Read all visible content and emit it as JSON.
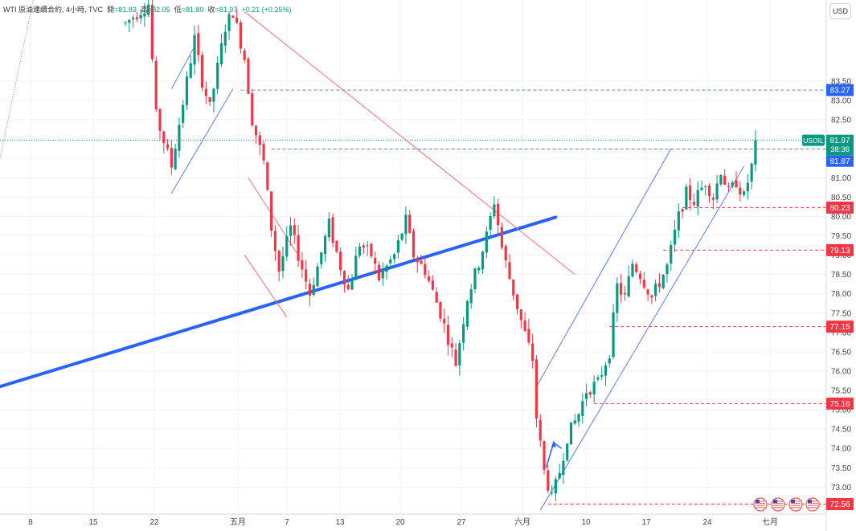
{
  "header": {
    "symbol": "WTI 原油連續合約",
    "interval": "4小時",
    "source": "TVC",
    "open_label": "開",
    "open": "=81.83",
    "high_label": "高",
    "high": "=82.05",
    "low_label": "低",
    "low": "=81.80",
    "close_label": "收",
    "close": "=81.97",
    "change": "+0.21 (+0.25%)"
  },
  "currency_button": "USD",
  "colors": {
    "up": "#089981",
    "down": "#f23645",
    "trend_blue": "#2962ff",
    "channel_blue": "#5b7fe0",
    "red_line": "#f0707a",
    "tag_red": "#f23645",
    "tag_blue": "#2962ff",
    "tag_green": "#089981"
  },
  "chart_data": {
    "type": "candlestick",
    "symbol": "USOIL",
    "yaxis": {
      "range": [
        72.3,
        85.6
      ],
      "ticks": [
        "73.00",
        "73.50",
        "74.00",
        "74.50",
        "75.00",
        "75.50",
        "76.00",
        "76.50",
        "77.00",
        "77.50",
        "78.00",
        "78.50",
        "79.00",
        "79.50",
        "80.00",
        "80.50",
        "81.00",
        "81.50",
        "82.00",
        "82.50",
        "83.00",
        "83.50"
      ]
    },
    "xaxis": {
      "ticks": [
        "8",
        "15",
        "22",
        "五月",
        "7",
        "13",
        "20",
        "27",
        "六月",
        "10",
        "17",
        "24",
        "七月"
      ]
    },
    "price_tags": [
      {
        "value": 83.27,
        "label": "83.27",
        "style": "blue-dashed"
      },
      {
        "value": 80.23,
        "label": "80.23",
        "style": "red-dashed"
      },
      {
        "value": 79.13,
        "label": "79.13",
        "style": "red-dashed"
      },
      {
        "value": 77.15,
        "label": "77.15",
        "style": "red-dashed"
      },
      {
        "value": 75.16,
        "label": "75.16",
        "style": "red-dashed"
      },
      {
        "value": 72.56,
        "label": "72.56",
        "style": "red-dashed"
      }
    ],
    "last_price": {
      "symbol": "USOIL",
      "price": "81.97",
      "countdown": "38:36",
      "bid": "81.87"
    },
    "path": [
      [
        0,
        85.0
      ],
      [
        6,
        85.5
      ],
      [
        8,
        82.6
      ],
      [
        12,
        81.3
      ],
      [
        14,
        82.4
      ],
      [
        18,
        84.6
      ],
      [
        20,
        83.5
      ],
      [
        22,
        82.8
      ],
      [
        26,
        84.9
      ],
      [
        28,
        85.3
      ],
      [
        31,
        84.1
      ],
      [
        33,
        82.5
      ],
      [
        36,
        81.4
      ],
      [
        38,
        79.7
      ],
      [
        40,
        78.6
      ],
      [
        43,
        79.7
      ],
      [
        45,
        79.0
      ],
      [
        48,
        78.0
      ],
      [
        50,
        78.7
      ],
      [
        53,
        79.8
      ],
      [
        56,
        78.7
      ],
      [
        58,
        78.1
      ],
      [
        61,
        79.3
      ],
      [
        64,
        79.0
      ],
      [
        66,
        78.4
      ],
      [
        70,
        79.0
      ],
      [
        73,
        79.9
      ],
      [
        75,
        79.0
      ],
      [
        78,
        78.6
      ],
      [
        82,
        77.5
      ],
      [
        86,
        76.2
      ],
      [
        89,
        77.9
      ],
      [
        92,
        78.8
      ],
      [
        94,
        79.5
      ],
      [
        96,
        80.4
      ],
      [
        98,
        79.2
      ],
      [
        100,
        78.4
      ],
      [
        103,
        77.3
      ],
      [
        106,
        76.3
      ],
      [
        107,
        74.8
      ],
      [
        109,
        73.4
      ],
      [
        111,
        72.7
      ],
      [
        113,
        73.4
      ],
      [
        115,
        74.3
      ],
      [
        118,
        74.9
      ],
      [
        120,
        75.5
      ],
      [
        123,
        75.7
      ],
      [
        126,
        76.5
      ],
      [
        128,
        78.2
      ],
      [
        130,
        77.9
      ],
      [
        132,
        78.8
      ],
      [
        134,
        78.5
      ],
      [
        137,
        77.9
      ],
      [
        141,
        78.7
      ],
      [
        144,
        80.0
      ],
      [
        146,
        80.6
      ],
      [
        148,
        80.4
      ],
      [
        151,
        80.9
      ],
      [
        153,
        80.5
      ],
      [
        155,
        81.2
      ],
      [
        157,
        80.6
      ],
      [
        159,
        80.9
      ],
      [
        161,
        80.5
      ],
      [
        163,
        81.3
      ],
      [
        164,
        81.97
      ]
    ],
    "drawings": {
      "blue_trendline": {
        "from": {
          "bar": 0,
          "price": 75.6
        },
        "to": {
          "bar": 112,
          "price": 79.98
        }
      },
      "red_trendline": {
        "from": {
          "bar": 31,
          "price": 85.3
        },
        "to": {
          "bar": 117,
          "price": 78.5
        }
      }
    }
  }
}
